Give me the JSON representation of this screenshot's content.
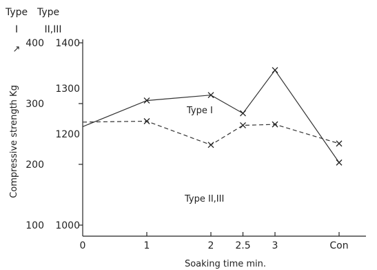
{
  "chart_data": {
    "type": "line",
    "title": "",
    "xlabel": "Soaking time min.",
    "ylabel": "Compressive strength Kg",
    "ylabel_mark": "↗",
    "x_categories": [
      "0",
      "1",
      "2",
      "2.5",
      "3",
      "Con"
    ],
    "x_positions": [
      0,
      1,
      2,
      2.5,
      3,
      4
    ],
    "axis_header": {
      "left": "Type",
      "right": "Type",
      "left_sub": "I",
      "right_sub": "II,III"
    },
    "y_left": {
      "label": "Type I",
      "ticks": [
        100,
        200,
        300,
        400
      ],
      "ylim": [
        100,
        400
      ]
    },
    "y_right": {
      "label": "Type II,III",
      "ticks": [
        1000,
        1200,
        1300,
        1400
      ],
      "ylim": [
        1000,
        1400
      ]
    },
    "series": [
      {
        "name": "Type I",
        "axis": "left",
        "line_style": "solid",
        "values": [
          262,
          305,
          314,
          284,
          355,
          203
        ]
      },
      {
        "name": "Type II,III",
        "axis": "right",
        "line_style": "dashed",
        "values": [
          1226,
          1228,
          1176,
          1219,
          1221,
          1179
        ]
      }
    ],
    "grid": false,
    "legend": "inline labels"
  }
}
